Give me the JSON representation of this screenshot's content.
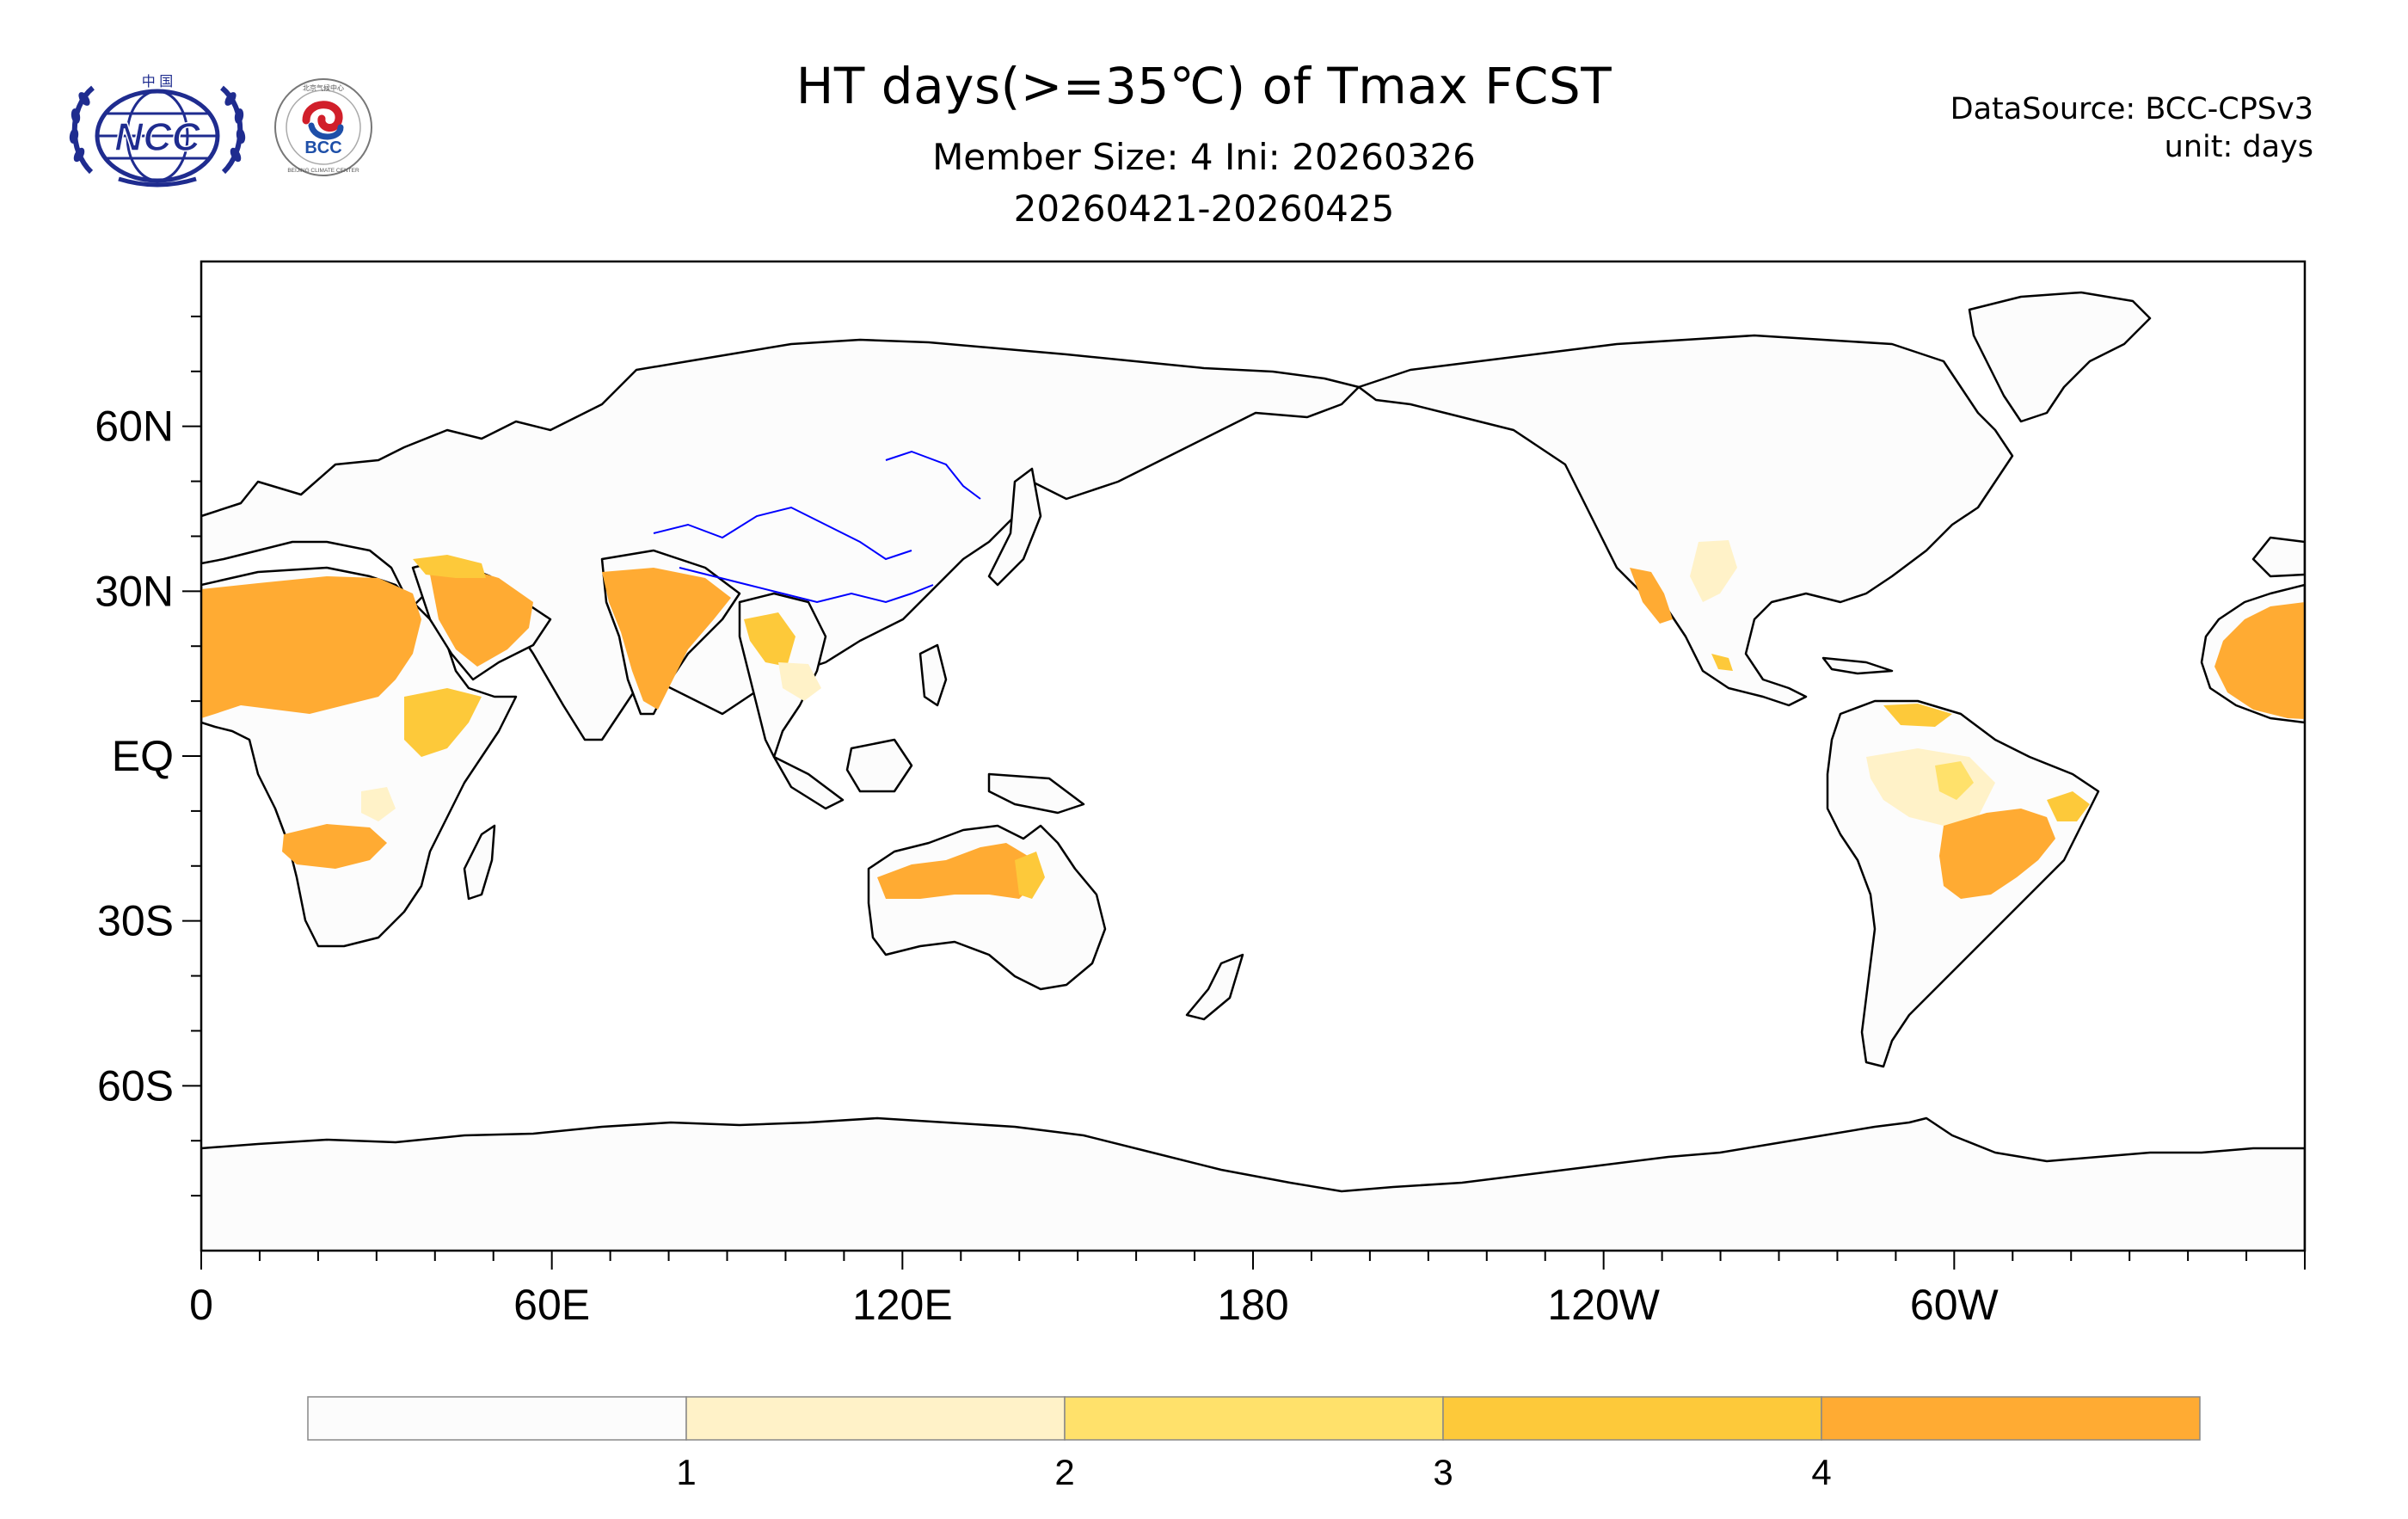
{
  "header": {
    "title": "HT days(>=35℃) of Tmax FCST",
    "member_line": "Member Size: 4  Ini: 20260326",
    "period": "20260421-20260425",
    "data_source": "DataSource: BCC-CPSv3",
    "unit": "unit: days"
  },
  "logos": {
    "ncc_text": "NCC",
    "ncc_top": "中 国",
    "bcc_text": "BCC",
    "bcc_ring": "BEIJING CLIMATE CENTER",
    "bcc_top": "北京气候中心"
  },
  "map": {
    "lat_labels": [
      "60N",
      "30N",
      "EQ",
      "30S",
      "60S"
    ],
    "lon_labels": [
      "0",
      "60E",
      "120E",
      "180",
      "120W",
      "60W"
    ],
    "land_color": "#fcfcfc",
    "ocean_color": "#ffffff",
    "coast_color": "#000000",
    "river_color": "#0000ff"
  },
  "legend": {
    "boundaries": [
      "1",
      "2",
      "3",
      "4"
    ],
    "colors": [
      "#fcfcfc",
      "#fff2c8",
      "#ffe16b",
      "#fdc93a",
      "#ffab33"
    ]
  }
}
